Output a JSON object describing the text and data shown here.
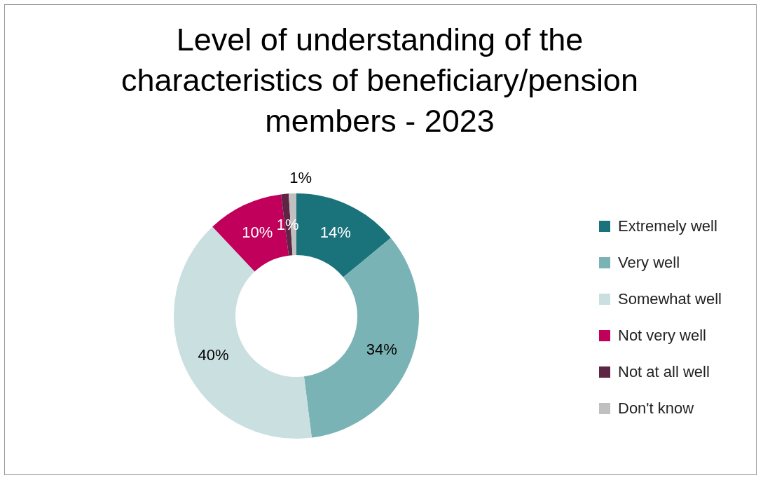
{
  "chart_data": {
    "type": "donut",
    "title": "Level of understanding of the characteristics of beneficiary/pension members - 2023",
    "categories": [
      "Extremely well",
      "Very well",
      "Somewhat well",
      "Not very well",
      "Not at all well",
      "Don't know"
    ],
    "values": [
      14,
      34,
      40,
      10,
      1,
      1
    ],
    "colors": [
      "#1a737a",
      "#7ab3b5",
      "#cadfe0",
      "#c0005a",
      "#5e2644",
      "#c0c0c0"
    ],
    "value_labels": [
      "14%",
      "34%",
      "40%",
      "10%",
      "1%",
      "1%"
    ],
    "legend": "right"
  }
}
